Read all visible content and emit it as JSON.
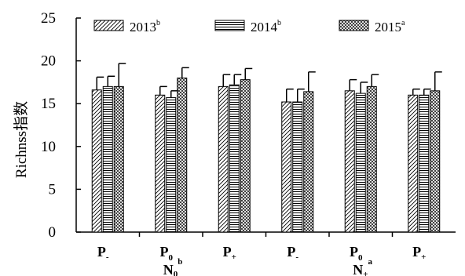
{
  "chart_data": {
    "type": "bar",
    "ylabel": "Richnss指数",
    "ylim": [
      0,
      25
    ],
    "yticks": [
      0,
      5,
      10,
      15,
      20,
      25
    ],
    "categories": [
      {
        "main": "P",
        "sub": "-"
      },
      {
        "main": "P",
        "sub": "0"
      },
      {
        "main": "P",
        "sub": "+"
      },
      {
        "main": "P",
        "sub": "-"
      },
      {
        "main": "P",
        "sub": "0"
      },
      {
        "main": "P",
        "sub": "+"
      }
    ],
    "groups": [
      {
        "main": "N",
        "sub": "0",
        "sup": "b"
      },
      {
        "main": "N",
        "sub": "+",
        "sup": "a"
      }
    ],
    "series": [
      {
        "name": "2013",
        "sup": "b",
        "pattern": "diagonal",
        "values": [
          16.6,
          16.0,
          17.0,
          15.2,
          16.5,
          16.0
        ],
        "errors": [
          1.5,
          1.0,
          1.4,
          1.5,
          1.3,
          0.7
        ]
      },
      {
        "name": "2014",
        "sup": "b",
        "pattern": "horizontal",
        "values": [
          17.0,
          15.7,
          17.2,
          15.2,
          16.2,
          16.0
        ],
        "errors": [
          1.2,
          0.8,
          1.2,
          1.5,
          1.3,
          0.7
        ]
      },
      {
        "name": "2015",
        "sup": "a",
        "pattern": "crosshatch",
        "values": [
          17.0,
          18.0,
          17.8,
          16.4,
          17.0,
          16.5
        ],
        "errors": [
          2.7,
          1.2,
          1.3,
          2.3,
          1.4,
          2.2
        ]
      }
    ],
    "legend_position": "top",
    "grid": false,
    "colors": {
      "bar_fill": "#ffffff",
      "stroke": "#000000"
    }
  }
}
